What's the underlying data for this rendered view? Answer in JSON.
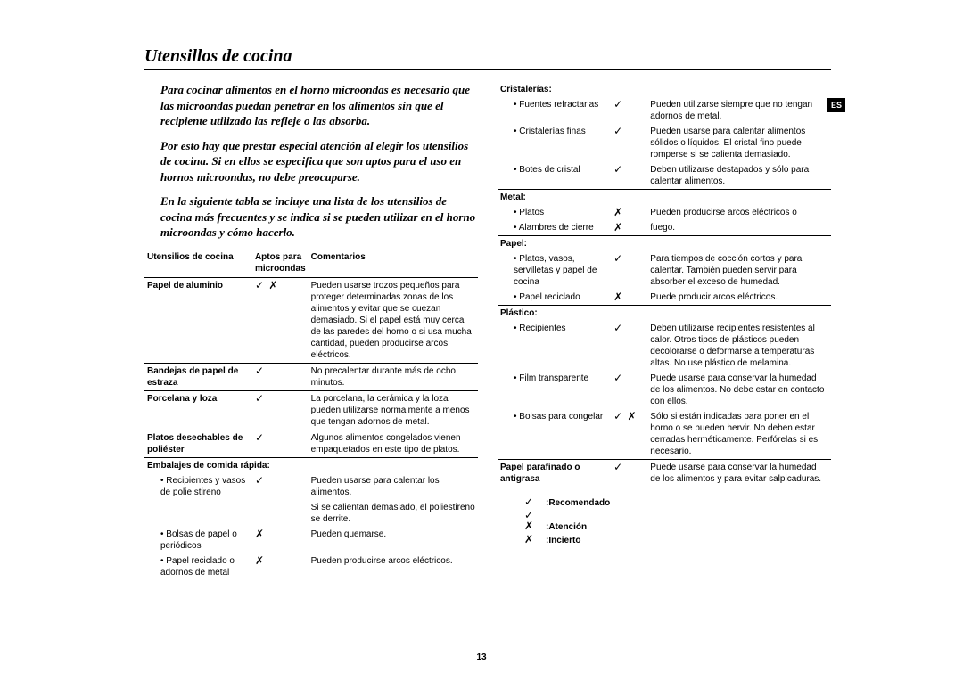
{
  "heading": "Utensillos de cocina",
  "language_tag": "ES",
  "page_number": "13",
  "intro_paragraphs": [
    "Para cocinar alimentos en el horno microondas es necesario que las microondas puedan penetrar en los alimentos sin que el recipiente utilizado las refleje o las absorba.",
    "Por esto hay que prestar especial atención al elegir los utensilios de cocina. Si en ellos se especifica que son aptos para el uso en hornos microondas, no debe preocuparse.",
    "En la siguiente tabla se incluye una lista de los utensilios de cocina más frecuentes y se indica si se pueden utilizar en el horno microondas y cómo hacerlo."
  ],
  "headers": {
    "name": "Utensilios de cocina",
    "mark": "Aptos para microondas",
    "comment": "Comentarios"
  },
  "left_rows": [
    {
      "type": "item",
      "name": "Papel de aluminio",
      "name_bold": true,
      "mark": "✓ ✗",
      "comment": "Pueden usarse trozos pequeños para proteger determinadas zonas de los alimentos y evitar que se cuezan demasiado. Si el papel está muy cerca de las paredes del horno o si usa mucha cantidad, pueden producirse arcos eléctricos.",
      "sep": true
    },
    {
      "type": "item",
      "name": "Bandejas de papel de estraza",
      "name_bold": true,
      "mark": "✓",
      "comment": "No precalentar durante más de ocho minutos.",
      "sep": true
    },
    {
      "type": "item",
      "name": "Porcelana y loza",
      "name_bold": true,
      "mark": "✓",
      "comment": "La porcelana, la cerámica y la loza pueden utilizarse normalmente a menos que tengan adornos de metal.",
      "sep": true
    },
    {
      "type": "item",
      "name": "Platos desechables de poliéster",
      "name_bold": true,
      "mark": "✓",
      "comment": "Algunos alimentos congelados vienen empaquetados en este tipo de platos.",
      "sep": true
    },
    {
      "type": "category",
      "name": "Embalajes de comida rápida:"
    },
    {
      "type": "bullet",
      "name": "Recipientes y vasos de polie stireno",
      "mark": "✓",
      "comment": "Pueden usarse para calentar los alimentos."
    },
    {
      "type": "bullet",
      "name": "",
      "mark": "",
      "comment": "Si se calientan demasiado, el poliestireno se derrite."
    },
    {
      "type": "bullet",
      "name": "Bolsas de papel o periódicos",
      "mark": "✗",
      "comment": "Pueden quemarse."
    },
    {
      "type": "bullet",
      "name": "Papel reciclado o adornos de metal",
      "mark": "✗",
      "comment": "Pueden producirse arcos eléctricos."
    }
  ],
  "right_rows": [
    {
      "type": "category",
      "name": "Cristalerías:",
      "sep_before": false
    },
    {
      "type": "bullet",
      "name": "Fuentes refractarias",
      "mark": "✓",
      "comment": "Pueden utilizarse siempre que no tengan adornos de metal."
    },
    {
      "type": "bullet",
      "name": "Cristalerías finas",
      "mark": "✓",
      "comment": "Pueden usarse para calentar alimentos sólidos o líquidos. El cristal fino puede romperse si se calienta demasiado."
    },
    {
      "type": "bullet",
      "name": "Botes de cristal",
      "mark": "✓",
      "comment": "Deben utilizarse destapados y sólo para calentar alimentos.",
      "sep": true
    },
    {
      "type": "category",
      "name": "Metal:"
    },
    {
      "type": "bullet",
      "name": "Platos",
      "mark": "✗",
      "comment": "Pueden producirse arcos eléctricos o"
    },
    {
      "type": "bullet",
      "name": "Alambres de cierre",
      "mark": "✗",
      "comment": "fuego.",
      "sep": true
    },
    {
      "type": "category",
      "name": "Papel:"
    },
    {
      "type": "bullet",
      "name": "Platos, vasos, servilletas y papel de cocina",
      "mark": "✓",
      "comment": "Para tiempos de cocción cortos y para calentar. También pueden servir para absorber el exceso de humedad."
    },
    {
      "type": "bullet",
      "name": "Papel reciclado",
      "mark": "✗",
      "comment": "Puede producir arcos eléctricos.",
      "sep": true
    },
    {
      "type": "category",
      "name": "Plástico:"
    },
    {
      "type": "bullet",
      "name": "Recipientes",
      "mark": "✓",
      "comment": "Deben utilizarse recipientes resistentes al calor. Otros tipos de plásticos pueden decolorarse o deformarse a temperaturas altas. No use plástico de melamina."
    },
    {
      "type": "bullet",
      "name": "Film transparente",
      "mark": "✓",
      "comment": "Puede usarse para conservar la humedad de los alimentos. No debe estar en contacto con ellos."
    },
    {
      "type": "bullet",
      "name": "Bolsas para congelar",
      "mark": "✓ ✗",
      "comment": "Sólo si están indicadas para poner en el horno o se pueden hervir. No deben estar cerradas herméticamente. Perfórelas si es necesario.",
      "sep": true
    },
    {
      "type": "item",
      "name": "Papel parafinado o antigrasa",
      "name_bold": true,
      "mark": "✓",
      "comment": "Puede usarse para conservar la humedad de los alimentos y para evitar salpicaduras.",
      "sep": true
    }
  ],
  "legend": [
    {
      "sym": "✓",
      "label": ":Recomendado"
    },
    {
      "sym": "✓ ✗",
      "label": ":Atención"
    },
    {
      "sym": "✗",
      "label": ":Incierto"
    }
  ]
}
